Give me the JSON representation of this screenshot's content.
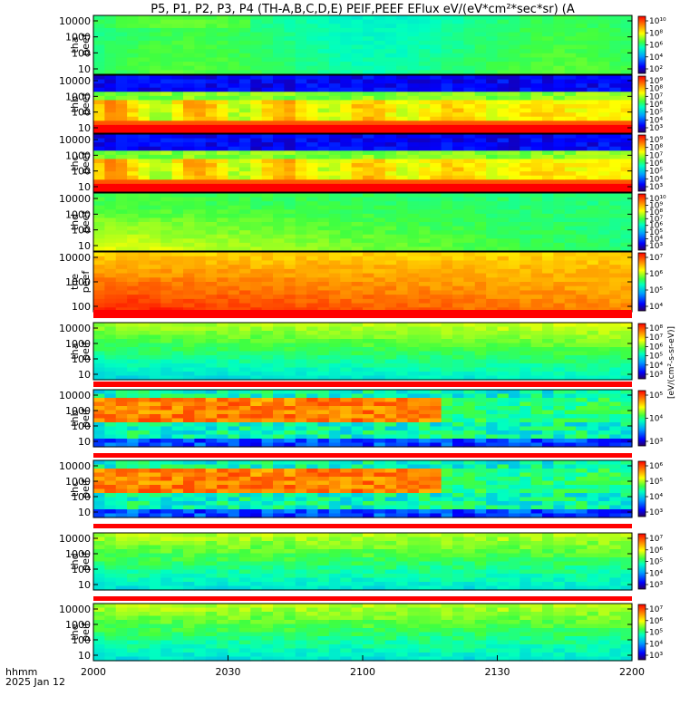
{
  "chart_data": {
    "type": "heatmap",
    "title": "P5, P1, P2, P3, P4 (TH-A,B,C,D,E) PEIF,PEEF EFlux eV/(eV*cm²*sec*sr)  (A",
    "x_ticks": [
      "2000",
      "2030",
      "2100",
      "2130",
      "2200"
    ],
    "x_label_lines": [
      "hhmm",
      "2025 Jan 12"
    ],
    "colorbar_unit": "[eV/(cm²-s-sr-eV)]",
    "panels": [
      {
        "id": "tha_peef",
        "label_lines": [
          "tha",
          "peef"
        ],
        "y_ticks": [
          "10000",
          "1000",
          "100",
          "10"
        ],
        "cbar_ticks": [
          "10¹⁰",
          "10⁸",
          "10⁶",
          "10⁴",
          "10²"
        ],
        "palette": "green-flat"
      },
      {
        "id": "thb_peef",
        "label_lines": [
          "thb",
          "peef"
        ],
        "y_ticks": [
          "10000",
          "1000",
          "100",
          "10"
        ],
        "cbar_ticks": [
          "10⁹",
          "10⁸",
          "10⁷",
          "10⁶",
          "10⁵",
          "10⁴",
          "10³"
        ],
        "palette": "banded"
      },
      {
        "id": "thc_peef",
        "label_lines": [
          "thc",
          "peef"
        ],
        "y_ticks": [
          "10000",
          "1000",
          "100",
          "10"
        ],
        "cbar_ticks": [
          "10⁹",
          "10⁸",
          "10⁷",
          "10⁶",
          "10⁵",
          "10⁴",
          "10³"
        ],
        "palette": "banded"
      },
      {
        "id": "thd_peef",
        "label_lines": [
          "thd",
          "peef"
        ],
        "y_ticks": [
          "10000",
          "1000",
          "100",
          "10"
        ],
        "cbar_ticks": [
          "10¹⁰",
          "10⁹",
          "10⁸",
          "10⁷",
          "10⁶",
          "10⁵",
          "10⁴",
          "10³"
        ],
        "palette": "green-warm"
      },
      {
        "id": "the_peef",
        "label_lines": [
          "the",
          "peef"
        ],
        "y_ticks": [
          "10000",
          "1000",
          "100"
        ],
        "cbar_ticks": [
          "10⁷",
          "10⁶",
          "10⁵",
          "10⁴"
        ],
        "palette": "hot"
      },
      {
        "id": "tha_peif",
        "label_lines": [
          "tha",
          "peif"
        ],
        "y_ticks": [
          "10000",
          "1000",
          "100",
          "10"
        ],
        "cbar_ticks": [
          "10⁸",
          "10⁷",
          "10⁶",
          "10⁵",
          "10⁴",
          "10³"
        ],
        "palette": "ion-green"
      },
      {
        "id": "thb_peif",
        "label_lines": [
          "thb",
          "peif"
        ],
        "y_ticks": [
          "10000",
          "1000",
          "100",
          "10"
        ],
        "cbar_ticks": [
          "10⁵",
          "10⁴",
          "10³"
        ],
        "palette": "ion-band"
      },
      {
        "id": "thc_peif",
        "label_lines": [
          "thc",
          "peif"
        ],
        "y_ticks": [
          "10000",
          "1000",
          "100",
          "10"
        ],
        "cbar_ticks": [
          "10⁶",
          "10⁵",
          "10⁴",
          "10³"
        ],
        "palette": "ion-band"
      },
      {
        "id": "thd_peif",
        "label_lines": [
          "thd",
          "peif"
        ],
        "y_ticks": [
          "10000",
          "1000",
          "100",
          "10"
        ],
        "cbar_ticks": [
          "10⁷",
          "10⁶",
          "10⁵",
          "10⁴",
          "10³"
        ],
        "palette": "ion-cyan"
      },
      {
        "id": "the_peif",
        "label_lines": [
          "the",
          "peif"
        ],
        "y_ticks": [
          "10000",
          "1000",
          "100",
          "10"
        ],
        "cbar_ticks": [
          "10⁷",
          "10⁶",
          "10⁵",
          "10⁴",
          "10³"
        ],
        "palette": "ion-cyan"
      }
    ]
  }
}
